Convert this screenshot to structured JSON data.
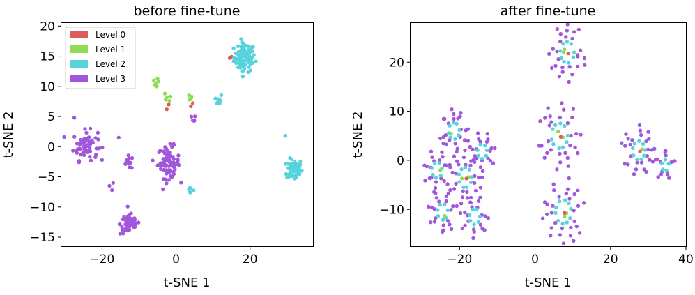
{
  "legend": {
    "entries": [
      {
        "label": "Level 0",
        "color": "#db5f57"
      },
      {
        "label": "Level 1",
        "color": "#91db57"
      },
      {
        "label": "Level 2",
        "color": "#57d3db"
      },
      {
        "label": "Level 3",
        "color": "#a157db"
      }
    ],
    "placement": "top-left of first panel"
  },
  "chart_data": [
    {
      "type": "scatter",
      "title": "before fine-tune",
      "xlabel": "t-SNE 1",
      "ylabel": "t-SNE 2",
      "xlim": [
        -31,
        37
      ],
      "ylim": [
        -16.5,
        20.5
      ],
      "xticks": [
        -20,
        0,
        20
      ],
      "yticks": [
        -15,
        -10,
        -5,
        0,
        5,
        10,
        15,
        20
      ],
      "grid": false,
      "series": [
        {
          "name": "Level 0",
          "color": "#db5f57",
          "points": [
            [
              -2.5,
              6.2
            ],
            [
              -2.0,
              7.0
            ],
            [
              4.0,
              6.7
            ],
            [
              4.5,
              7.2
            ],
            [
              14.5,
              14.7
            ],
            [
              15.0,
              14.9
            ]
          ]
        },
        {
          "name": "Level 1",
          "color": "#91db57",
          "points": [
            [
              -6.0,
              11.0
            ],
            [
              -5.5,
              10.5
            ],
            [
              -5.0,
              11.3
            ],
            [
              -4.8,
              10.8
            ],
            [
              -5.8,
              10.2
            ],
            [
              -5.2,
              10.0
            ],
            [
              -3.0,
              8.8
            ],
            [
              -2.4,
              8.2
            ],
            [
              -1.8,
              7.6
            ],
            [
              -2.8,
              7.8
            ],
            [
              -1.5,
              8.3
            ],
            [
              3.5,
              8.5
            ],
            [
              4.2,
              8.3
            ],
            [
              4.0,
              7.9
            ],
            [
              3.6,
              7.8
            ]
          ]
        },
        {
          "name": "Level 2",
          "color": "#57d3db",
          "clusters": [
            {
              "center": [
                18.5,
                14.8
              ],
              "spread": [
                2.6,
                2.2
              ],
              "count": 90
            },
            {
              "center": [
                32.0,
                -3.8
              ],
              "spread": [
                1.9,
                1.6
              ],
              "count": 70
            },
            {
              "center": [
                11.5,
                7.8
              ],
              "spread": [
                0.9,
                0.9
              ],
              "count": 9
            },
            {
              "center": [
                3.8,
                -7.2
              ],
              "spread": [
                1.0,
                0.8
              ],
              "count": 6
            }
          ],
          "points": [
            [
              29.5,
              1.8
            ]
          ]
        },
        {
          "name": "Level 3",
          "color": "#a157db",
          "clusters": [
            {
              "center": [
                -24.5,
                0.2
              ],
              "spread": [
                3.0,
                2.2
              ],
              "count": 65
            },
            {
              "center": [
                -2.0,
                -2.6
              ],
              "spread": [
                2.7,
                2.4
              ],
              "count": 75
            },
            {
              "center": [
                -12.5,
                -12.8
              ],
              "spread": [
                2.4,
                1.6
              ],
              "count": 55
            },
            {
              "center": [
                -12.7,
                -2.6
              ],
              "spread": [
                1.5,
                1.0
              ],
              "count": 14
            },
            {
              "center": [
                4.5,
                4.5
              ],
              "spread": [
                0.7,
                0.6
              ],
              "count": 5
            }
          ],
          "points": [
            [
              -27.5,
              4.8
            ],
            [
              -15.5,
              1.5
            ],
            [
              -18.0,
              -6.5
            ],
            [
              -17.3,
              -7.2
            ],
            [
              -17.0,
              -6.0
            ]
          ]
        }
      ]
    },
    {
      "type": "scatter",
      "title": "after fine-tune",
      "xlabel": "t-SNE 1",
      "ylabel": "t-SNE 2",
      "xlim": [
        -33,
        40
      ],
      "ylim": [
        -17.5,
        28
      ],
      "xticks": [
        -20,
        0,
        20,
        40
      ],
      "yticks": [
        -10,
        0,
        10,
        20
      ],
      "grid": false,
      "flowers": [
        {
          "center": [
            8.5,
            22.0
          ],
          "radius": 3.8,
          "petals": 9,
          "inner": 2,
          "core": 1
        },
        {
          "center": [
            -21.5,
            6.0
          ],
          "radius": 3.0,
          "petals": 8,
          "inner": 1,
          "core": 0
        },
        {
          "center": [
            -14.0,
            1.8
          ],
          "radius": 2.6,
          "petals": 7,
          "inner": 0,
          "core": 0
        },
        {
          "center": [
            -26.0,
            -2.0
          ],
          "radius": 2.8,
          "petals": 7,
          "inner": 1,
          "core": 0
        },
        {
          "center": [
            -18.5,
            -3.5
          ],
          "radius": 3.6,
          "petals": 9,
          "inner": 2,
          "core": 1
        },
        {
          "center": [
            6.5,
            5.0
          ],
          "radius": 4.5,
          "petals": 10,
          "inner": 2,
          "core": 1
        },
        {
          "center": [
            27.5,
            2.0
          ],
          "radius": 3.4,
          "petals": 9,
          "inner": 1,
          "core": 1
        },
        {
          "center": [
            34.5,
            -1.0
          ],
          "radius": 2.0,
          "petals": 5,
          "inner": 0,
          "core": 0
        },
        {
          "center": [
            -24.5,
            -10.5
          ],
          "radius": 2.9,
          "petals": 7,
          "inner": 1,
          "core": 0
        },
        {
          "center": [
            -16.0,
            -11.5
          ],
          "radius": 2.8,
          "petals": 7,
          "inner": 0,
          "core": 0
        },
        {
          "center": [
            7.5,
            -10.5
          ],
          "radius": 4.3,
          "petals": 10,
          "inner": 2,
          "core": 1
        }
      ]
    }
  ]
}
